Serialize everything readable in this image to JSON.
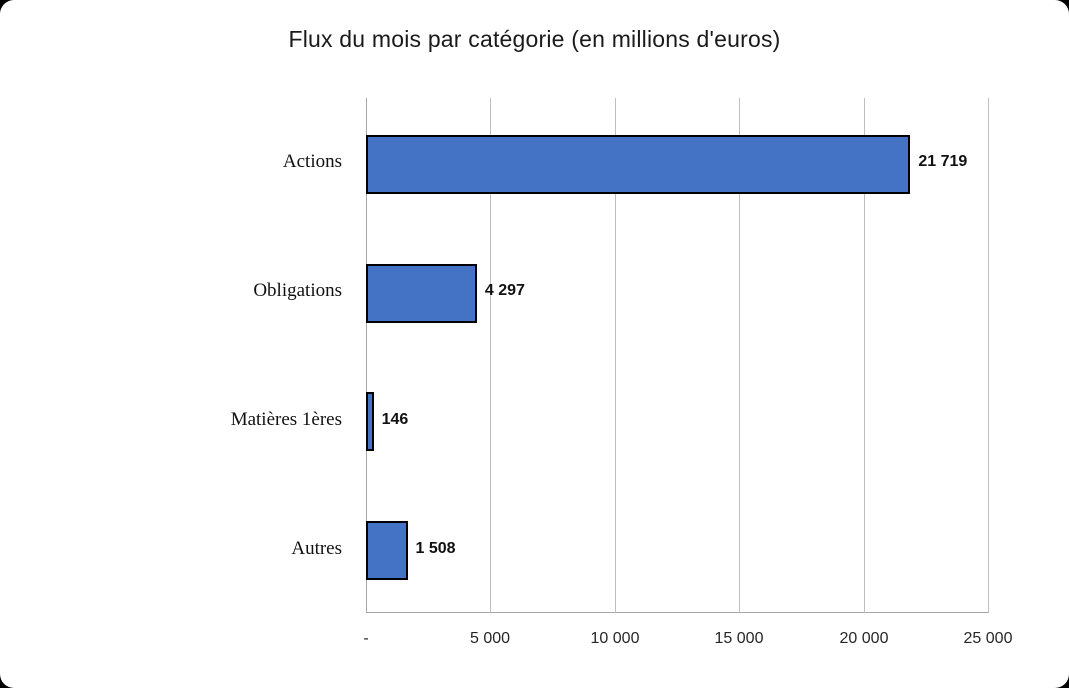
{
  "chart_data": {
    "type": "bar",
    "orientation": "horizontal",
    "title": "Flux du mois par catégorie (en millions d'euros)",
    "categories": [
      "Actions",
      "Obligations",
      "Matières 1ères",
      "Autres"
    ],
    "values": [
      21719,
      4297,
      146,
      1508
    ],
    "data_labels": [
      "21 719",
      "4 297",
      "146",
      "1 508"
    ],
    "xlabel": "",
    "ylabel": "",
    "xlim": [
      0,
      25000
    ],
    "x_ticks": [
      0,
      5000,
      10000,
      15000,
      20000,
      25000
    ],
    "x_tick_labels": [
      "-",
      "5 000",
      "10 000",
      "15 000",
      "20 000",
      "25 000"
    ],
    "grid": true,
    "legend": false,
    "bar_color": "#4472C4",
    "bar_border_color": "#000000",
    "gridline_color": "#bfbfbf",
    "axis_color": "#a6a6a6",
    "background_color": "#ffffff"
  }
}
